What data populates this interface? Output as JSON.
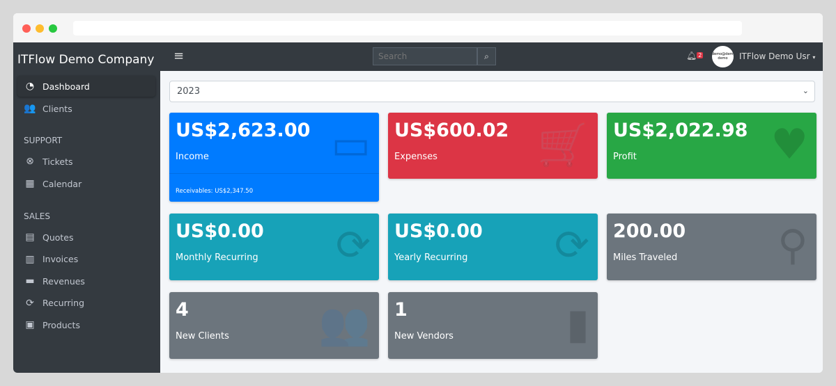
{
  "window": {
    "dots": [
      "#ff5f57",
      "#febc2e",
      "#28c840"
    ]
  },
  "sidebar": {
    "brand": "ITFlow Demo Company",
    "items": [
      {
        "label": "Dashboard",
        "icon": "tachometer-icon",
        "glyph": "◔"
      },
      {
        "label": "Clients",
        "icon": "users-icon",
        "glyph": "👥"
      }
    ],
    "support_header": "SUPPORT",
    "support": [
      {
        "label": "Tickets",
        "icon": "life-ring-icon",
        "glyph": "⊗"
      },
      {
        "label": "Calendar",
        "icon": "calendar-icon",
        "glyph": "▦"
      }
    ],
    "sales_header": "SALES",
    "sales": [
      {
        "label": "Quotes",
        "icon": "file-icon",
        "glyph": "▤"
      },
      {
        "label": "Invoices",
        "icon": "invoice-icon",
        "glyph": "▥"
      },
      {
        "label": "Revenues",
        "icon": "credit-card-icon",
        "glyph": "▬"
      },
      {
        "label": "Recurring",
        "icon": "sync-icon",
        "glyph": "⟳"
      },
      {
        "label": "Products",
        "icon": "box-icon",
        "glyph": "▣"
      }
    ]
  },
  "topbar": {
    "menu_glyph": "≡",
    "search_placeholder": "Search",
    "search_glyph": "⌕",
    "notif_count": "2",
    "avatar_text": "demo@demo demo",
    "user": "ITFlow Demo Usr"
  },
  "year": "2023",
  "cards": [
    {
      "value": "US$2,623.00",
      "label": "Income",
      "color": "#007bff",
      "glyph": "▭",
      "footer": "Receivables: US$2,347.50"
    },
    {
      "value": "US$600.02",
      "label": "Expenses",
      "color": "#dc3545",
      "glyph": "🛒"
    },
    {
      "value": "US$2,022.98",
      "label": "Profit",
      "color": "#28a745",
      "glyph": "♥"
    },
    {
      "value": "US$0.00",
      "label": "Monthly Recurring",
      "color": "#17a2b8",
      "glyph": "⟳"
    },
    {
      "value": "US$0.00",
      "label": "Yearly Recurring",
      "color": "#17a2b8",
      "glyph": "⟳"
    },
    {
      "value": "200.00",
      "label": "Miles Traveled",
      "color": "#6c757d",
      "glyph": "⚲"
    },
    {
      "value": "4",
      "label": "New Clients",
      "color": "#6c757d",
      "glyph": "👥"
    },
    {
      "value": "1",
      "label": "New Vendors",
      "color": "#6c757d",
      "glyph": "▮"
    }
  ]
}
